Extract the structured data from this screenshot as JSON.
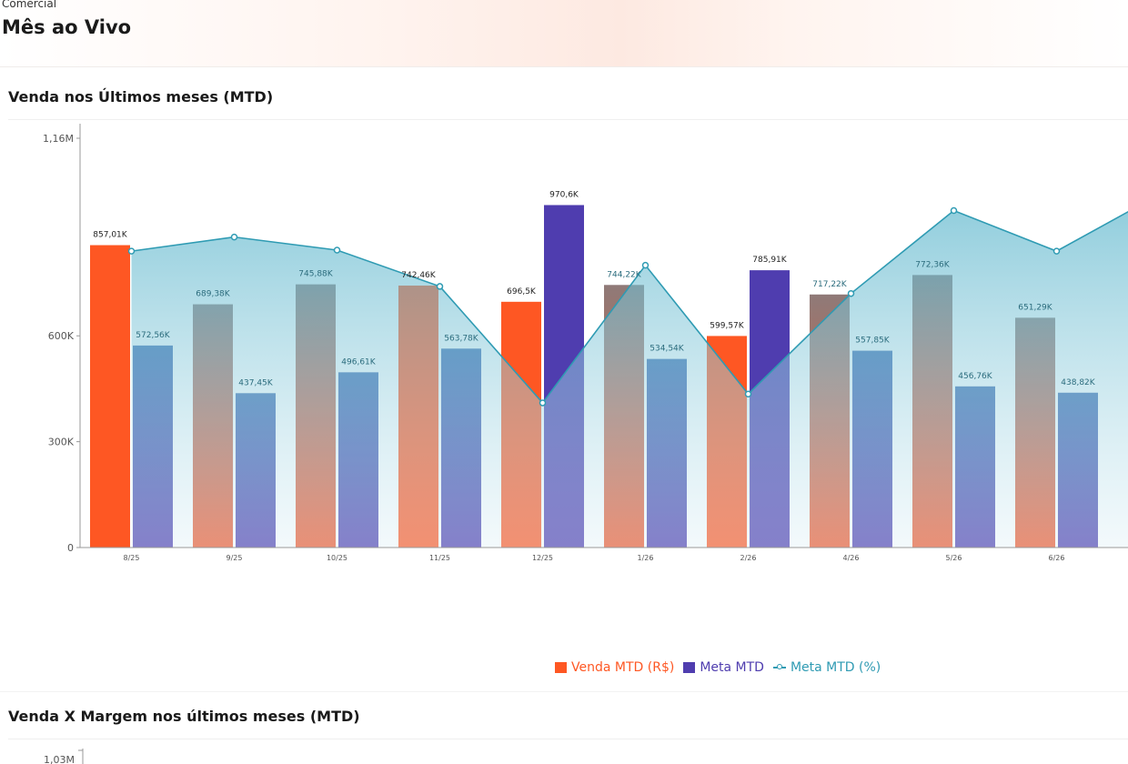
{
  "header": {
    "breadcrumb": "Comercial",
    "title": "Mês ao Vivo"
  },
  "colors": {
    "venda": "#fe5723",
    "meta": "#4f3daf",
    "meta_pct": "#2f9bb3"
  },
  "chart_data": [
    {
      "type": "bar",
      "title": "Venda nos Últimos meses (MTD)",
      "categories": [
        "8/25",
        "9/25",
        "10/25",
        "11/25",
        "12/25",
        "1/26",
        "2/26",
        "4/26",
        "5/26",
        "6/26"
      ],
      "series": [
        {
          "name": "Venda MTD (R$)",
          "type": "bar",
          "values": [
            857010,
            689380,
            745880,
            742460,
            696500,
            744220,
            599570,
            717220,
            772360,
            651290
          ],
          "labels": [
            "857,01K",
            "689,38K",
            "745,88K",
            "742,46K",
            "696,5K",
            "744,22K",
            "599,57K",
            "717,22K",
            "772,36K",
            "651,29K"
          ]
        },
        {
          "name": "Meta MTD",
          "type": "bar",
          "values": [
            572560,
            437450,
            496610,
            563780,
            970600,
            534540,
            785910,
            557850,
            456760,
            438820
          ],
          "labels": [
            "572,56K",
            "437,45K",
            "496,61K",
            "563,78K",
            "970,6K",
            "534,54K",
            "785,91K",
            "557,85K",
            "456,76K",
            "438,82K"
          ]
        },
        {
          "name": "Meta MTD (%)",
          "type": "area-line",
          "values": [
            840000,
            880000,
            843000,
            740000,
            410000,
            800000,
            435000,
            720000,
            955000,
            840000
          ]
        }
      ],
      "yticks": [
        {
          "value": 0,
          "label": "0"
        },
        {
          "value": 300000,
          "label": "300K"
        },
        {
          "value": 600000,
          "label": "600K"
        },
        {
          "value": 1160000,
          "label": "1,16M"
        }
      ],
      "ylim": [
        0,
        1160000
      ],
      "legend_position": "bottom-center"
    },
    {
      "type": "bar",
      "title": "Venda X Margem nos últimos meses (MTD)",
      "yticks": [
        {
          "value": 1030000,
          "label": "1,03M"
        }
      ]
    }
  ]
}
